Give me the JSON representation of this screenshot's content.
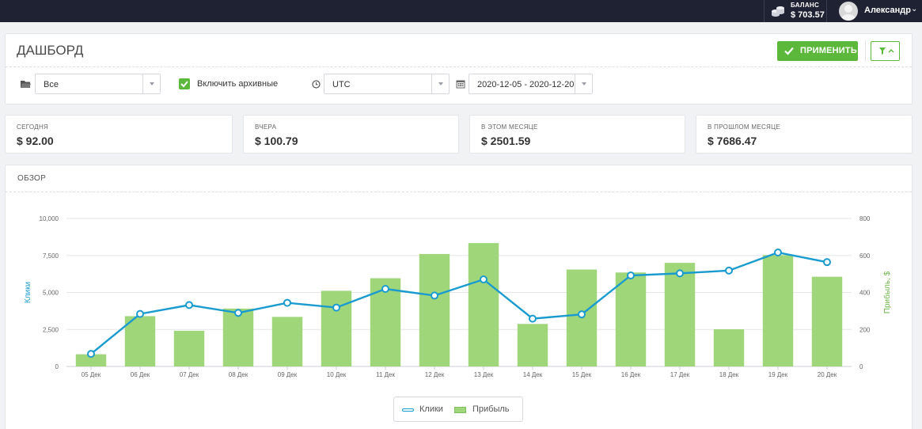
{
  "topbar": {
    "balance_label": "БАЛАНС",
    "balance_value": "$ 703.57",
    "user_name": "Александр",
    "caret": "⌄"
  },
  "dashboard": {
    "title": "ДАШБОРД",
    "apply_label": "ПРИМЕНИТЬ",
    "folder_value": "Все",
    "include_archived_label": "Включить архивные",
    "include_archived_checked": true,
    "timezone_value": "UTC",
    "date_range_value": "2020-12-05 - 2020-12-20",
    "accent_color": "#5bb83a"
  },
  "stats": [
    {
      "label": "СЕГОДНЯ",
      "value": "$ 92.00"
    },
    {
      "label": "ВЧЕРА",
      "value": "$ 100.79"
    },
    {
      "label": "В ЭТОМ МЕСЯЦЕ",
      "value": "$ 2501.59"
    },
    {
      "label": "В ПРОШЛОМ МЕСЯЦЕ",
      "value": "$ 7686.47"
    }
  ],
  "overview": {
    "title": "ОБЗОР",
    "legend_clicks": "Клики",
    "legend_profit": "Прибыль"
  },
  "chart_data": {
    "type": "bar",
    "categories": [
      "05 Дек",
      "06 Дек",
      "07 Дек",
      "08 Дек",
      "09 Дек",
      "10 Дек",
      "11 Дек",
      "12 Дек",
      "13 Дек",
      "14 Дек",
      "15 Дек",
      "16 Дек",
      "17 Дек",
      "18 Дек",
      "19 Дек",
      "20 Дек"
    ],
    "series": [
      {
        "name": "Прибыль",
        "kind": "bar",
        "axis": "right",
        "color": "#9fd67a",
        "values": [
          66,
          272,
          193,
          313,
          268,
          409,
          477,
          608,
          667,
          230,
          524,
          508,
          560,
          201,
          602,
          485
        ]
      },
      {
        "name": "Клики",
        "kind": "line",
        "axis": "left",
        "color": "#1a9bd0",
        "values": [
          850,
          3550,
          4150,
          3620,
          4300,
          3980,
          5240,
          4790,
          5880,
          3230,
          3520,
          6150,
          6290,
          6480,
          7700,
          7050
        ]
      }
    ],
    "ylabel": "Клики",
    "y2label": "Прибыль, $",
    "ylim": [
      0,
      10000
    ],
    "y2lim": [
      0,
      800
    ],
    "yticks": [
      "0",
      "2,500",
      "5,000",
      "7,500",
      "10,000"
    ],
    "y2ticks": [
      "0",
      "200",
      "400",
      "600",
      "800"
    ],
    "grid": true,
    "legend": "bottom"
  }
}
